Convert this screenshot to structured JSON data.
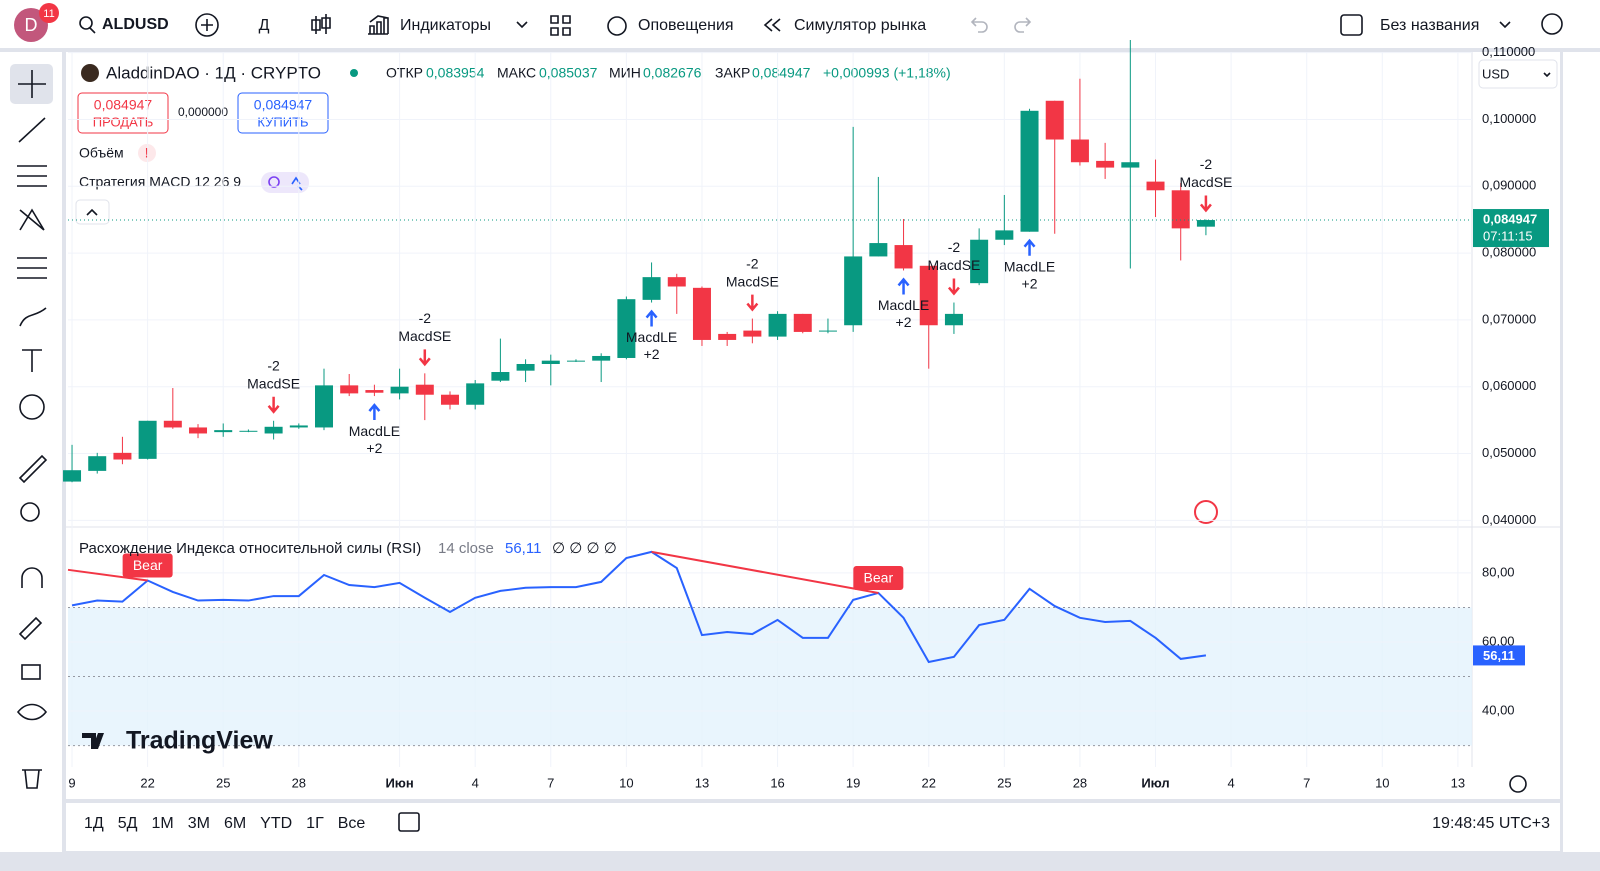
{
  "toolbar": {
    "avatar": "D",
    "badge": "11",
    "symbol": "ALDUSD",
    "interval": "Д",
    "indicators": "Индикаторы",
    "alerts": "Оповещения",
    "replay": "Симулятор рынка",
    "layout_name": "Без названия"
  },
  "legend": {
    "title": "AladdinDAO · 1Д · CRYPTO",
    "o_label": "ОТКР",
    "o": "0,083954",
    "h_label": "МАКС",
    "h": "0,085037",
    "l_label": "МИН",
    "l": "0,082676",
    "c_label": "ЗАКР",
    "c": "0,084947",
    "change": "+0,000993 (+1,18%)",
    "sell_price": "0,084947",
    "sell": "ПРОДАТЬ",
    "spread": "0,000000",
    "buy_price": "0,084947",
    "buy": "КУПИТЬ",
    "volume": "Объём",
    "strategy": "Стратегия MACD 12 26 9"
  },
  "currency": "USD",
  "watermark": "TradingView",
  "bottom": {
    "ranges": [
      "1Д",
      "5Д",
      "1М",
      "3М",
      "6М",
      "YTD",
      "1Г",
      "Все"
    ],
    "time": "19:48:45 UTC+3"
  },
  "chart_data": [
    {
      "type": "candlestick",
      "up_color": "#089981",
      "down_color": "#f23645",
      "open": [
        0.0458,
        0.0474,
        0.0501,
        0.0492,
        0.0549,
        0.0539,
        0.0532,
        0.0533,
        0.053,
        0.0539,
        0.0539,
        0.0602,
        0.0595,
        0.059,
        0.0603,
        0.0588,
        0.0573,
        0.0609,
        0.0624,
        0.0634,
        0.0639,
        0.0639,
        0.0643,
        0.073,
        0.0764,
        0.0748,
        0.0679,
        0.0684,
        0.0675,
        0.0709,
        0.0684,
        0.0692,
        0.0795,
        0.0812,
        0.0781,
        0.0692,
        0.0755,
        0.082,
        0.0832,
        0.1028,
        0.097,
        0.0938,
        0.0928,
        0.0907,
        0.0894,
        0.083954
      ],
      "high": [
        0.0513,
        0.0501,
        0.0525,
        0.0549,
        0.0598,
        0.0544,
        0.0545,
        0.0536,
        0.0549,
        0.0545,
        0.0627,
        0.0619,
        0.0603,
        0.0627,
        0.062,
        0.0593,
        0.061,
        0.0672,
        0.0641,
        0.0648,
        0.0641,
        0.065,
        0.0735,
        0.0786,
        0.0769,
        0.075,
        0.0682,
        0.0702,
        0.0713,
        0.0709,
        0.0702,
        0.0989,
        0.0914,
        0.0851,
        0.0781,
        0.0726,
        0.0837,
        0.0887,
        0.1016,
        0.1028,
        0.1061,
        0.0965,
        0.1119,
        0.094,
        0.0905,
        0.085037
      ],
      "low": [
        0.0457,
        0.047,
        0.0484,
        0.0491,
        0.0537,
        0.0523,
        0.0525,
        0.0532,
        0.0521,
        0.0537,
        0.0535,
        0.0586,
        0.0586,
        0.0581,
        0.055,
        0.0566,
        0.0566,
        0.0607,
        0.0607,
        0.0602,
        0.0637,
        0.0607,
        0.0641,
        0.0726,
        0.0709,
        0.0661,
        0.0661,
        0.0665,
        0.067,
        0.068,
        0.068,
        0.0682,
        0.0795,
        0.0774,
        0.0627,
        0.0679,
        0.0752,
        0.0812,
        0.0832,
        0.0829,
        0.0931,
        0.0911,
        0.0777,
        0.0854,
        0.0789,
        0.082676
      ],
      "close": [
        0.0475,
        0.0496,
        0.0491,
        0.0549,
        0.0539,
        0.053,
        0.0535,
        0.0534,
        0.054,
        0.0542,
        0.0602,
        0.059,
        0.0591,
        0.06,
        0.0588,
        0.0573,
        0.0605,
        0.0622,
        0.0634,
        0.0639,
        0.0639,
        0.0646,
        0.0731,
        0.0764,
        0.075,
        0.067,
        0.067,
        0.0675,
        0.0709,
        0.0682,
        0.0684,
        0.0795,
        0.0815,
        0.0777,
        0.0692,
        0.0709,
        0.082,
        0.0834,
        0.1013,
        0.097,
        0.0936,
        0.0928,
        0.0936,
        0.0894,
        0.0837,
        0.084947
      ],
      "last_price_label": "0,084947",
      "countdown": "07:11:15",
      "xlim": [
        -0.16,
        55.56
      ],
      "ylim": [
        0.039,
        0.1104
      ],
      "yticks": [
        {
          "value": 0.11,
          "label": "0,110000"
        },
        {
          "value": 0.1,
          "label": "0,100000"
        },
        {
          "value": 0.09,
          "label": "0,090000"
        },
        {
          "value": 0.08,
          "label": "0,080000"
        },
        {
          "value": 0.07,
          "label": "0,070000"
        },
        {
          "value": 0.06,
          "label": "0,060000"
        },
        {
          "value": 0.05,
          "label": "0,050000"
        },
        {
          "value": 0.04,
          "label": "0,040000"
        }
      ],
      "xticks": [
        {
          "value": 0,
          "label": "9"
        },
        {
          "value": 3,
          "label": "22"
        },
        {
          "value": 6,
          "label": "25"
        },
        {
          "value": 9,
          "label": "28"
        },
        {
          "value": 13,
          "label": "Июн"
        },
        {
          "value": 16,
          "label": "4"
        },
        {
          "value": 19,
          "label": "7"
        },
        {
          "value": 22,
          "label": "10"
        },
        {
          "value": 25,
          "label": "13"
        },
        {
          "value": 28,
          "label": "16"
        },
        {
          "value": 31,
          "label": "19"
        },
        {
          "value": 34,
          "label": "22"
        },
        {
          "value": 37,
          "label": "25"
        },
        {
          "value": 40,
          "label": "28"
        },
        {
          "value": 43,
          "label": "Июл"
        },
        {
          "value": 46,
          "label": "4"
        },
        {
          "value": 49,
          "label": "7"
        },
        {
          "value": 52,
          "label": "10"
        },
        {
          "value": 55,
          "label": "13"
        }
      ],
      "signals": [
        {
          "index": 8,
          "label": "MacdSE",
          "qty": "-2",
          "side": "short"
        },
        {
          "index": 12,
          "label": "MacdLE",
          "qty": "+2",
          "side": "long"
        },
        {
          "index": 14,
          "label": "MacdSE",
          "qty": "-2",
          "side": "short"
        },
        {
          "index": 23,
          "label": "MacdLE",
          "qty": "+2",
          "side": "long"
        },
        {
          "index": 27,
          "label": "MacdSE",
          "qty": "-2",
          "side": "short"
        },
        {
          "index": 33,
          "label": "MacdLE",
          "qty": "+2",
          "side": "long"
        },
        {
          "index": 35,
          "label": "MacdSE",
          "qty": "-2",
          "side": "short"
        },
        {
          "index": 38,
          "label": "MacdLE",
          "qty": "+2",
          "side": "long"
        },
        {
          "index": 45,
          "label": "MacdSE",
          "qty": "-2",
          "side": "short"
        }
      ]
    },
    {
      "type": "line",
      "title": "Расхождение Индекса относительной силы (RSI)",
      "params": "14 close",
      "value_label": "56,11",
      "flags": "∅ ∅ ∅ ∅",
      "color": "#2962ff",
      "values": [
        70.6,
        72,
        71.7,
        77.8,
        74.5,
        72,
        72.2,
        72,
        73.3,
        73.3,
        79.4,
        76.5,
        75.9,
        77.1,
        72.8,
        68.7,
        72.8,
        74.8,
        75.7,
        75.9,
        75.9,
        77.4,
        84.3,
        86.1,
        81.4,
        62,
        62.9,
        62.3,
        66.4,
        61.2,
        61.2,
        72.2,
        74.2,
        67,
        54.2,
        55.7,
        64.9,
        66.4,
        75.4,
        70.4,
        67,
        65.8,
        66.1,
        61.2,
        55.1,
        56.11
      ],
      "ylim": [
        23.8,
        93.3
      ],
      "yticks": [
        {
          "value": 80,
          "label": "80,00"
        },
        {
          "value": 60,
          "label": "60,00"
        },
        {
          "value": 40,
          "label": "40,00"
        }
      ],
      "band": [
        30,
        70
      ],
      "midline": 50,
      "divergences": [
        {
          "label": "Bear",
          "from": [
            -0.16,
            80.9
          ],
          "to": [
            3,
            77.8
          ]
        },
        {
          "label": "Bear",
          "from": [
            23,
            86.1
          ],
          "to": [
            32,
            74.2
          ]
        }
      ]
    }
  ]
}
